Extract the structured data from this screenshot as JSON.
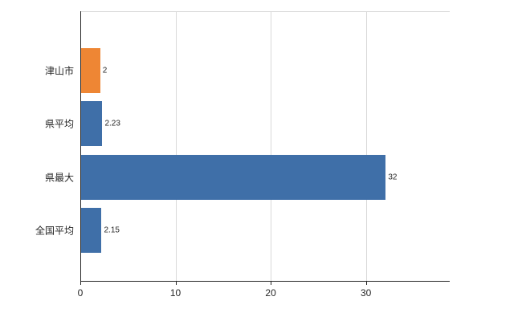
{
  "chart_data": {
    "type": "bar",
    "orientation": "horizontal",
    "title": "",
    "categories": [
      "津山市",
      "県平均",
      "県最大",
      "全国平均"
    ],
    "values": [
      2,
      2.23,
      32,
      2.15
    ],
    "value_labels": [
      "2",
      "2.23",
      "32",
      "2.15"
    ],
    "bar_colors": [
      "#ee8634",
      "#3f6fa8",
      "#3f6fa8",
      "#3f6fa8"
    ],
    "xticks": [
      0,
      10,
      20,
      30
    ],
    "xtick_labels": [
      "0",
      "10",
      "20",
      "30"
    ],
    "xlim": [
      0,
      38.8
    ],
    "grid": true,
    "legend": "none",
    "colors": {
      "accent_orange": "#ee8634",
      "accent_blue": "#3f6fa8",
      "gridline": "#d9d9d9",
      "axis": "#262626"
    }
  }
}
